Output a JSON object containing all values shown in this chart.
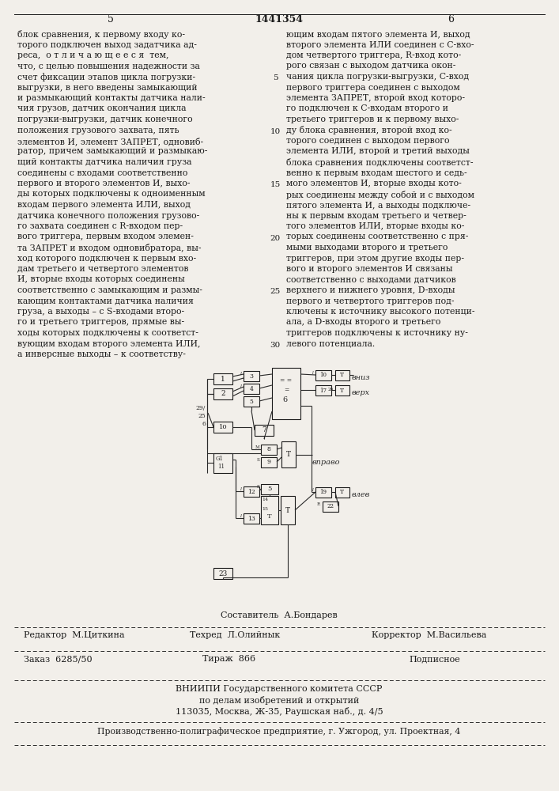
{
  "patent_number": "1441354",
  "page_left": "5",
  "page_right": "6",
  "background_color": "#f2efea",
  "text_color": "#1a1a1a",
  "left_column_text": [
    "блок сравнения, к первому входу ко-",
    "торого подключен выход задатчика ад-",
    "реса,  о т л и ч а ю щ е е с я  тем,",
    "что, с целью повышения надежности за",
    "счет фиксации этапов цикла погрузки-",
    "выгрузки, в него введены замыкающий",
    "и размыкающий контакты датчика нали-",
    "чия грузов, датчик окончания цикла",
    "погрузки-выгрузки, датчик конечного",
    "положения грузового захвата, пять",
    "элементов И, элемент ЗАПРЕТ, одновиб-",
    "ратор, причем замыкающий и размыкаю-",
    "щий контакты датчика наличия груза",
    "соединены с входами соответственно",
    "первого и второго элементов И, выхо-",
    "ды которых подключены к одноименным",
    "входам первого элемента ИЛИ, выход",
    "датчика конечного положения грузово-",
    "го захвата соединен с R-входом пер-",
    "вого триггера, первым входом элемен-",
    "та ЗАПРЕТ и входом одновибратора, вы-",
    "ход которого подключен к первым вхо-",
    "дам третьего и четвертого элементов",
    "И, вторые входы которых соединены",
    "соответственно с замыкающим и размы-",
    "кающим контактами датчика наличия",
    "груза, а выходы – с S-входами второ-",
    "го и третьего триггеров, прямые вы-",
    "ходы которых подключены к соответст-",
    "вующим входам второго элемента ИЛИ,",
    "а инверсные выходы – к соответству-"
  ],
  "right_column_text": [
    "ющим входам пятого элемента И, выход",
    "второго элемента ИЛИ соединен с C-вхо-",
    "дом четвертого триггера, R-вход кото-",
    "рого связан с выходом датчика окон-",
    "чания цикла погрузки-выгрузки, С-вход",
    "первого триггера соединен с выходом",
    "элемента ЗАПРЕТ, второй вход которо-",
    "го подключен к С-входам второго и",
    "третьего триггеров и к первому выхо-",
    "ду блока сравнения, второй вход ко-",
    "торого соединен с выходом первого",
    "элемента ИЛИ, второй и третий выходы",
    "блока сравнения подключены соответст-",
    "венно к первым входам шестого и седь-",
    "мого элементов И, вторые входы кото-",
    "рых соединены между собой и с выходом",
    "пятого элемента И, а выходы подключе-",
    "ны к первым входам третьего и четвер-",
    "того элементов ИЛИ, вторые входы ко-",
    "торых соединены соответственно с пря-",
    "мыми выходами второго и третьего",
    "триггеров, при этом другие входы пер-",
    "вого и второго элементов И связаны",
    "соответственно с выходами датчиков",
    "верхнего и нижнего уровня, D-входы",
    "первого и четвертого триггеров под-",
    "ключены к источнику высокого потенци-",
    "ала, а D-входы второго и третьего",
    "триггеров подключены к источнику ну-",
    "левого потенциала."
  ],
  "footer_composer": "Составитель  А.Бондарев",
  "footer_editor": "Редактор  М.Циткина",
  "footer_techred": "Техред  Л.Олийнык",
  "footer_corrector": "Корректор  М.Васильева",
  "footer_order": "Заказ  6285/50",
  "footer_tirazh": "Тираж  866",
  "footer_podpisnoe": "Подписное",
  "footer_vnipi": "ВНИИПИ Государственного комитета СССР",
  "footer_vnipi2": "по делам изобретений и открытий",
  "footer_address": "113035, Москва, Ж-35, Раушская наб., д. 4/5",
  "footer_production": "Производственно-полиграфическое предприятие, г. Ужгород, ул. Проектная, 4"
}
